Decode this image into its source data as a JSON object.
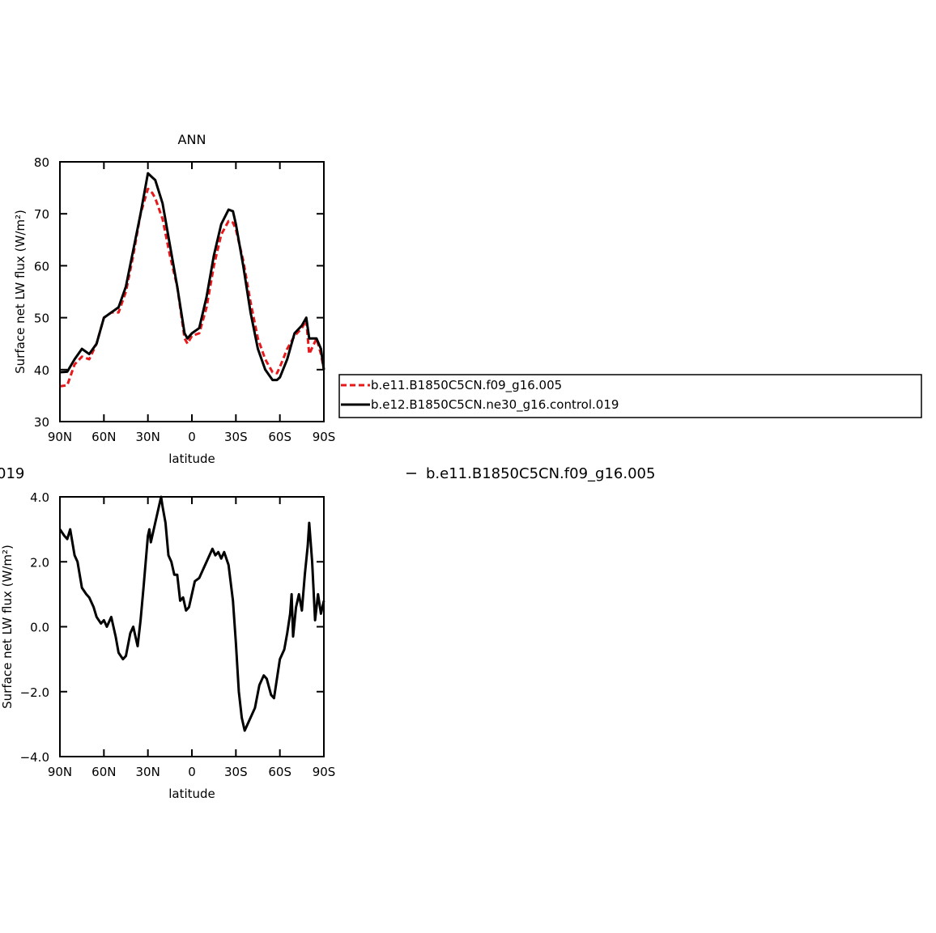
{
  "chart_data": [
    {
      "type": "line",
      "title": "ANN",
      "xlabel": "latitude",
      "ylabel": "Surface net LW flux (W/m²)",
      "x": [
        90,
        85,
        80,
        75,
        70,
        65,
        60,
        55,
        50,
        45,
        40,
        35,
        30,
        27,
        25,
        20,
        15,
        10,
        5,
        3,
        0,
        -5,
        -10,
        -15,
        -20,
        -25,
        -28,
        -30,
        -35,
        -40,
        -45,
        -50,
        -55,
        -58,
        -60,
        -65,
        -70,
        -75,
        -78,
        -80,
        -85,
        -88,
        -90
      ],
      "series": [
        {
          "name": "b.e11.B1850C5CN.f09_g16.005",
          "color": "#e8191c",
          "line_style": "dashed",
          "values": [
            36.8,
            37,
            41,
            42.5,
            42,
            45,
            50,
            51,
            51,
            55,
            62,
            70,
            74.8,
            74,
            73,
            69,
            62,
            56,
            46,
            45,
            46.5,
            47,
            52,
            60,
            66,
            68.6,
            68.3,
            67,
            61,
            53,
            46,
            42,
            39.5,
            39.3,
            40.5,
            44,
            46.5,
            48,
            49.5,
            43,
            46,
            43,
            40
          ]
        },
        {
          "name": "b.e12.B1850C5CN.ne30_g16.control.019",
          "color": "#000000",
          "line_style": "solid",
          "values": [
            39.5,
            39.6,
            42,
            44,
            43,
            45,
            50,
            51,
            52,
            56,
            63,
            70,
            77.8,
            77,
            76.5,
            72,
            64,
            56,
            47,
            46,
            47,
            48,
            54,
            62,
            68,
            70.8,
            70.5,
            68,
            60,
            51,
            44,
            40,
            38,
            38,
            38.5,
            42,
            47,
            48.5,
            50,
            46,
            46,
            44,
            40
          ]
        }
      ],
      "xlim": [
        90,
        -90
      ],
      "xticks": [
        {
          "value": 90,
          "label": "90N"
        },
        {
          "value": 60,
          "label": "60N"
        },
        {
          "value": 30,
          "label": "30N"
        },
        0,
        {
          "value": -30,
          "label": "30S"
        },
        {
          "value": -60,
          "label": "60S"
        },
        {
          "value": -90,
          "label": "90S"
        }
      ],
      "ylim": [
        30,
        80
      ],
      "yticks": [
        30,
        40,
        50,
        60,
        70,
        80
      ],
      "legend": "right"
    },
    {
      "type": "line",
      "xlabel": "latitude",
      "ylabel": "Surface net LW flux (W/m²)",
      "annotations": [
        "019",
        "b.e11.B1850C5CN.f09_g16.005"
      ],
      "x": [
        90,
        87,
        85,
        83,
        80,
        78,
        75,
        72,
        70,
        67,
        65,
        62,
        60,
        58,
        55,
        52,
        50,
        47,
        45,
        42,
        40,
        38,
        37,
        35,
        33,
        30,
        29,
        28,
        25,
        23,
        21,
        20,
        18,
        16,
        14,
        12,
        10,
        8,
        6,
        4,
        2,
        0,
        -2,
        -5,
        -8,
        -10,
        -12,
        -14,
        -16,
        -18,
        -20,
        -22,
        -25,
        -28,
        -30,
        -32,
        -34,
        -36,
        -38,
        -40,
        -43,
        -46,
        -49,
        -51,
        -54,
        -56,
        -58,
        -60,
        -63,
        -65,
        -67,
        -68,
        -69,
        -71,
        -73,
        -75,
        -77,
        -79,
        -80,
        -82,
        -84,
        -86,
        -88,
        -90
      ],
      "series": [
        {
          "color": "#000000",
          "line_style": "solid",
          "values": [
            3.0,
            2.8,
            2.7,
            3.0,
            2.2,
            2.0,
            1.2,
            1.0,
            0.9,
            0.6,
            0.3,
            0.1,
            0.2,
            0.0,
            0.3,
            -0.3,
            -0.8,
            -1.0,
            -0.9,
            -0.2,
            0.0,
            -0.4,
            -0.6,
            0.2,
            1.2,
            2.8,
            3.0,
            2.6,
            3.2,
            3.6,
            4.0,
            3.7,
            3.2,
            2.2,
            2.0,
            1.6,
            1.6,
            0.8,
            0.9,
            0.5,
            0.6,
            1.0,
            1.4,
            1.5,
            1.8,
            2.0,
            2.2,
            2.4,
            2.2,
            2.3,
            2.1,
            2.3,
            1.9,
            0.8,
            -0.5,
            -2.0,
            -2.8,
            -3.2,
            -3.0,
            -2.8,
            -2.5,
            -1.8,
            -1.5,
            -1.6,
            -2.1,
            -2.2,
            -1.6,
            -1.0,
            -0.7,
            -0.2,
            0.4,
            1.0,
            -0.3,
            0.6,
            1.0,
            0.5,
            1.6,
            2.5,
            3.2,
            2.0,
            0.2,
            1.0,
            0.4,
            0.8
          ]
        }
      ],
      "xlim": [
        90,
        -90
      ],
      "xticks": [
        {
          "value": 90,
          "label": "90N"
        },
        {
          "value": 60,
          "label": "60N"
        },
        {
          "value": 30,
          "label": "30N"
        },
        0,
        {
          "value": -30,
          "label": "30S"
        },
        {
          "value": -60,
          "label": "60S"
        },
        {
          "value": -90,
          "label": "90S"
        }
      ],
      "ylim": [
        -4,
        4
      ],
      "yticks": [
        {
          "value": -4,
          "label": "−4.0"
        },
        {
          "value": -2,
          "label": "−2.0"
        },
        {
          "value": 0,
          "label": "0.0"
        },
        {
          "value": 2,
          "label": "2.0"
        },
        {
          "value": 4,
          "label": "4.0"
        }
      ]
    }
  ]
}
